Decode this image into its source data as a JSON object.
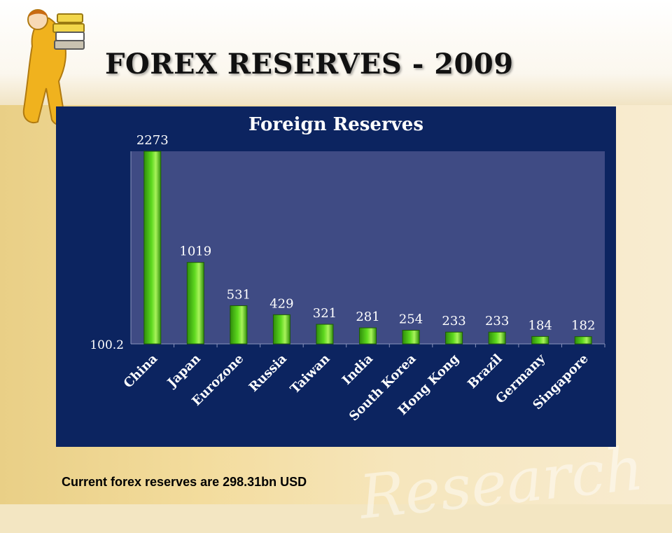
{
  "slide": {
    "title": "FOREX RESERVES - 2009",
    "footer": "Current forex reserves are 298.31bn USD",
    "watermark": "Research"
  },
  "colors": {
    "panel": "#0c2460",
    "plot_area": "#3f4b84",
    "bar": "#5ed91f",
    "text_on_panel": "#ffffff"
  },
  "chart_data": {
    "type": "bar",
    "title": "Foreign Reserves",
    "xlabel": "",
    "ylabel": "",
    "categories": [
      "China",
      "Japan",
      "Eurozone",
      "Russia",
      "Taiwan",
      "India",
      "South Korea",
      "Hong Kong",
      "Brazil",
      "Germany",
      "Singapore"
    ],
    "values": [
      2273,
      1019,
      531,
      429,
      321,
      281,
      254,
      233,
      233,
      184,
      182
    ],
    "y_tick_labels": [
      "100.2"
    ],
    "ylim": [
      100.2,
      2273
    ],
    "grid": false,
    "legend": "none",
    "data_labels": true
  }
}
